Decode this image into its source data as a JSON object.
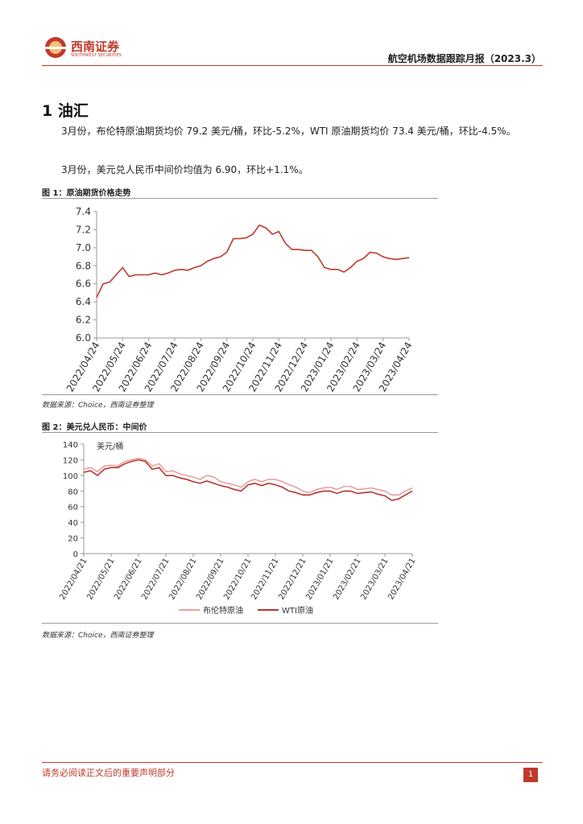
{
  "header": {
    "brand": "西南证券",
    "brand_en": "SOUTHWEST SECURITIES",
    "report_title": "航空机场数据跟踪月报（2023.3）"
  },
  "section": {
    "title": "1 油汇",
    "paragraphs": [
      "3月份，布伦特原油期货均价 79.2 美元/桶，环比-5.2%，WTI 原油期货均价 73.4 美元/桶，环比-4.5%。",
      "3月份，美元兑人民币中间价均值为 6.90，环比+1.1%。"
    ]
  },
  "figures": [
    {
      "caption": "图 1：原油期货价格走势",
      "source": "数据来源：Choice，西南证券整理"
    },
    {
      "caption": "图 2：美元兑人民币：中间价",
      "source": "数据来源：Choice，西南证券整理"
    }
  ],
  "footer": {
    "notice": "请务必阅读正文后的重要声明部分",
    "page": "1"
  },
  "chart_data": [
    {
      "type": "line",
      "color": "#c0392b",
      "categories": [
        "2022/04/24",
        null,
        null,
        null,
        "2022/05/24",
        null,
        null,
        null,
        "2022/06/24",
        null,
        null,
        null,
        "2022/07/24",
        null,
        null,
        null,
        "2022/08/24",
        null,
        null,
        null,
        "2022/09/24",
        null,
        null,
        null,
        "2022/10/24",
        null,
        null,
        null,
        "2022/11/24",
        null,
        null,
        null,
        "2022/12/24",
        null,
        null,
        null,
        "2023/01/24",
        null,
        null,
        null,
        "2023/02/24",
        null,
        null,
        null,
        "2023/03/24",
        null,
        null,
        null,
        "2023/04/24"
      ],
      "values": [
        6.45,
        6.6,
        6.62,
        6.7,
        6.78,
        6.68,
        6.7,
        6.7,
        6.7,
        6.72,
        6.7,
        6.72,
        6.75,
        6.76,
        6.75,
        6.78,
        6.8,
        6.85,
        6.88,
        6.9,
        6.95,
        7.1,
        7.1,
        7.11,
        7.15,
        7.25,
        7.22,
        7.15,
        7.18,
        7.05,
        6.98,
        6.98,
        6.97,
        6.97,
        6.9,
        6.78,
        6.76,
        6.76,
        6.73,
        6.78,
        6.85,
        6.88,
        6.95,
        6.94,
        6.9,
        6.88,
        6.87,
        6.88,
        6.89
      ],
      "ylim": [
        6.0,
        7.4
      ],
      "yticks": [
        {
          "value": 6,
          "label": "6.0"
        },
        6.2,
        6.4,
        6.6,
        6.8,
        {
          "value": 7,
          "label": "7.0"
        },
        7.2,
        7.4
      ]
    },
    {
      "type": "line",
      "unit_label": "美元/桶",
      "categories": [
        "2022/04/21",
        null,
        null,
        null,
        "2022/05/21",
        null,
        null,
        null,
        "2022/06/21",
        null,
        null,
        null,
        "2022/07/21",
        null,
        null,
        null,
        "2022/08/21",
        null,
        null,
        null,
        "2022/09/21",
        null,
        null,
        null,
        "2022/10/21",
        null,
        null,
        null,
        "2022/11/21",
        null,
        null,
        null,
        "2022/12/21",
        null,
        null,
        null,
        "2023/01/21",
        null,
        null,
        null,
        "2023/02/21",
        null,
        null,
        null,
        "2023/03/21",
        null,
        null,
        null,
        "2023/04/21"
      ],
      "series": [
        {
          "name": "布伦特原油",
          "color": "#e6a1a1",
          "values": [
            108,
            110,
            105,
            112,
            113,
            112,
            118,
            120,
            122,
            120,
            112,
            115,
            105,
            106,
            102,
            100,
            98,
            95,
            100,
            98,
            92,
            90,
            88,
            85,
            92,
            95,
            92,
            95,
            95,
            92,
            88,
            85,
            80,
            78,
            82,
            84,
            85,
            82,
            86,
            86,
            82,
            83,
            84,
            82,
            80,
            75,
            75,
            80,
            84
          ]
        },
        {
          "name": "WTI原油",
          "color": "#b8342f",
          "values": [
            104,
            106,
            100,
            108,
            110,
            110,
            115,
            118,
            120,
            118,
            108,
            110,
            100,
            100,
            97,
            95,
            92,
            90,
            93,
            90,
            87,
            85,
            82,
            80,
            88,
            90,
            87,
            90,
            88,
            85,
            80,
            78,
            75,
            75,
            78,
            80,
            80,
            77,
            80,
            80,
            77,
            78,
            79,
            76,
            74,
            68,
            70,
            75,
            80
          ]
        }
      ],
      "ylim": [
        0,
        140
      ],
      "yticks": [
        0,
        20,
        40,
        60,
        80,
        100,
        120,
        140
      ]
    }
  ]
}
